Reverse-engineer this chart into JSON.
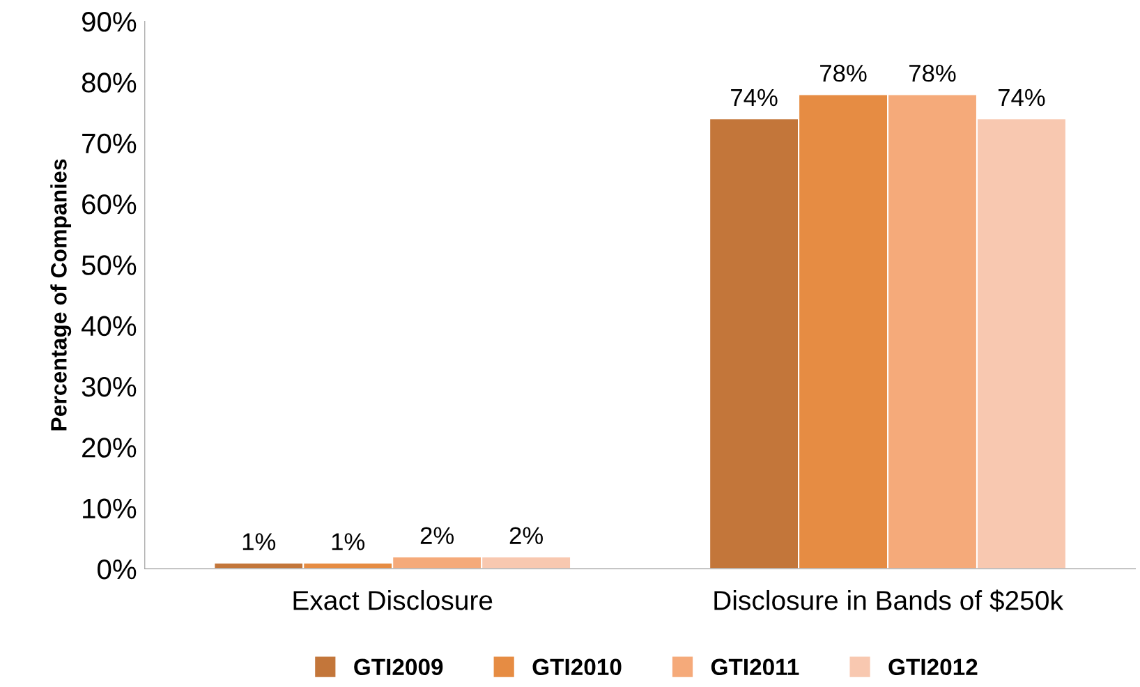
{
  "chart_data": {
    "type": "bar",
    "ylabel": "Percentage of Companies",
    "categories": [
      "Exact Disclosure",
      "Disclosure in Bands of $250k"
    ],
    "series": [
      {
        "name": "GTI2009",
        "color": "#c3763a",
        "values": [
          1,
          74
        ]
      },
      {
        "name": "GTI2010",
        "color": "#e68c43",
        "values": [
          1,
          78
        ]
      },
      {
        "name": "GTI2011",
        "color": "#f5aa7a",
        "values": [
          2,
          78
        ]
      },
      {
        "name": "GTI2012",
        "color": "#f8c8b0",
        "values": [
          2,
          74
        ]
      }
    ],
    "ylim": [
      0,
      90
    ],
    "yticks": [
      {
        "value": 0,
        "label": "0%"
      },
      {
        "value": 10,
        "label": "10%"
      },
      {
        "value": 20,
        "label": "20%"
      },
      {
        "value": 30,
        "label": "30%"
      },
      {
        "value": 40,
        "label": "40%"
      },
      {
        "value": 50,
        "label": "50%"
      },
      {
        "value": 60,
        "label": "60%"
      },
      {
        "value": 70,
        "label": "70%"
      },
      {
        "value": 80,
        "label": "80%"
      },
      {
        "value": 90,
        "label": "90%"
      }
    ],
    "value_labels": [
      [
        "1%",
        "74%"
      ],
      [
        "1%",
        "78%"
      ],
      [
        "2%",
        "78%"
      ],
      [
        "2%",
        "74%"
      ]
    ],
    "grid": false,
    "legend": "bottom"
  }
}
